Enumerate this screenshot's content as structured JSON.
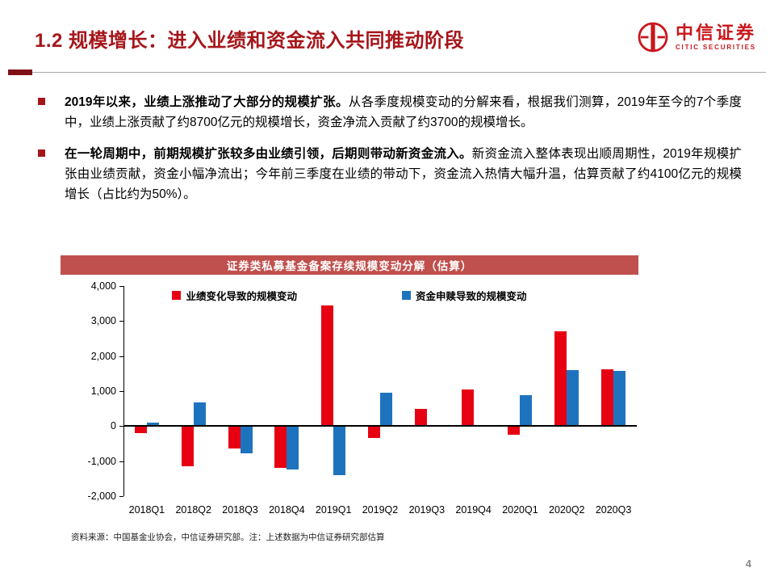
{
  "header": {
    "title": "1.2 规模增长：进入业绩和资金流入共同推动阶段",
    "logo": {
      "icon": "citic-circle-emblem",
      "cn": "中信证券",
      "en": "CITIC SECURITIES"
    }
  },
  "colors": {
    "title_red": "#a5161b",
    "brand_red": "#c9161c",
    "chart_header_bg": "#c0504d",
    "bar_red": "#e60012",
    "bar_blue": "#1e73be"
  },
  "bullets": [
    {
      "bold": "2019年以来，业绩上涨推动了大部分的规模扩张。",
      "rest": "从各季度规模变动的分解来看，根据我们测算，2019年至今的7个季度中，业绩上涨贡献了约8700亿元的规模增长，资金净流入贡献了约3700的规模增长。"
    },
    {
      "bold": "在一轮周期中，前期规模扩张较多由业绩引领，后期则带动新资金流入。",
      "rest": "新资金流入整体表现出顺周期性，2019年规模扩张由业绩贡献，资金小幅净流出；今年前三季度在业绩的带动下，资金流入热情大幅升温，估算贡献了约4100亿元的规模增长（占比约为50%）。"
    }
  ],
  "chart_data": {
    "type": "bar",
    "title": "证券类私募基金备案存续规模变动分解（估算）",
    "categories": [
      "2018Q1",
      "2018Q2",
      "2018Q3",
      "2018Q4",
      "2019Q1",
      "2019Q2",
      "2019Q3",
      "2019Q4",
      "2020Q1",
      "2020Q2",
      "2020Q3"
    ],
    "series": [
      {
        "key": "performance",
        "name": "业绩变化导致的规模变动",
        "color": "#e60012",
        "values": [
          -200,
          -1150,
          -650,
          -1200,
          3450,
          -350,
          500,
          1050,
          -250,
          2700,
          1620
        ]
      },
      {
        "key": "net-flows",
        "name": "资金申赎导致的规模变动",
        "color": "#1e73be",
        "values": [
          100,
          680,
          -780,
          -1250,
          -1400,
          950,
          0,
          0,
          880,
          1600,
          1580
        ]
      }
    ],
    "ylim": [
      -2000,
      4000
    ],
    "ytick_interval": 1000,
    "grid": false,
    "legend_position": "top-center"
  },
  "footer": {
    "source": "资料来源：中国基金业协会，中信证券研究部。注：上述数据为中信证券研究部估算",
    "page_number": "4"
  }
}
